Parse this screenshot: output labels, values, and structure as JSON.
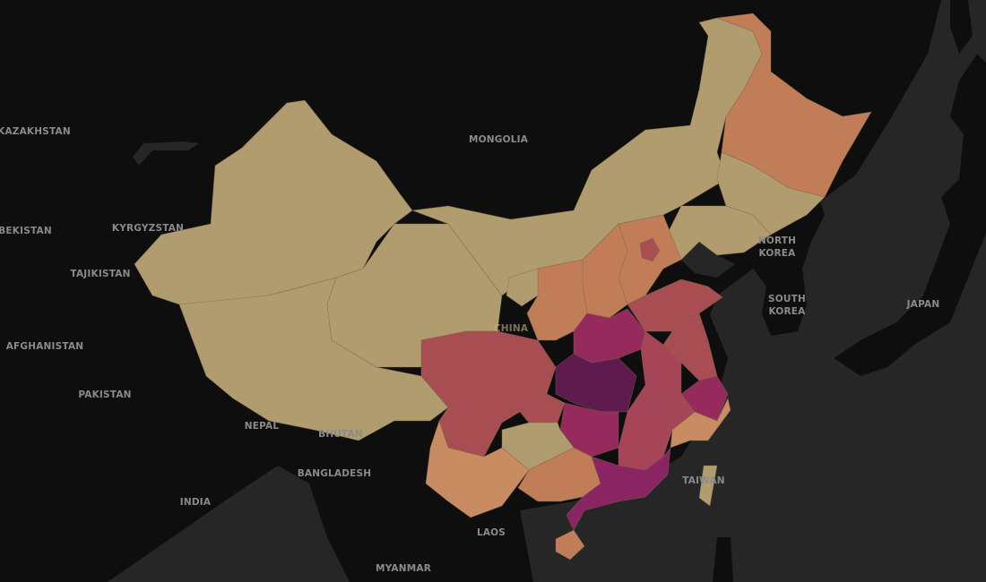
{
  "map": {
    "colors": {
      "water": "#262626",
      "land": "#0e0e0e",
      "tan": "#b09c6e",
      "orange": "#c07d58",
      "light_orange": "#c98b62",
      "red_brown": "#a84e52",
      "rose": "#a64458",
      "magenta": "#962a5c",
      "deep_magenta": "#8a2462",
      "purple": "#5f1a4e"
    },
    "labels": {
      "kazakhstan": "KAZAKHSTAN",
      "mongolia": "MONGOLIA",
      "uzbekistan": "BEKISTAN",
      "kyrgyzstan": "KYRGYZSTAN",
      "tajikistan": "TAJIKISTAN",
      "afghanistan": "AFGHANISTAN",
      "pakistan": "PAKISTAN",
      "nepal": "NEPAL",
      "bhutan": "BHUTAN",
      "bangladesh": "BANGLADESH",
      "india": "INDIA",
      "laos": "LAOS",
      "myanmar": "MYANMAR",
      "taiwan": "TAIWAN",
      "north_korea": "NORTH\nKOREA",
      "south_korea": "SOUTH\nKOREA",
      "japan": "JAPAN",
      "china": "CHINA"
    }
  }
}
